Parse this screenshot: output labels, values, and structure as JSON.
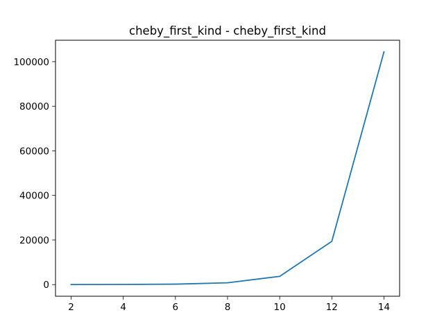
{
  "chart_data": {
    "type": "line",
    "title": "cheby_first_kind - cheby_first_kind",
    "xlabel": "",
    "ylabel": "",
    "x": [
      2,
      4,
      6,
      8,
      10,
      12,
      14
    ],
    "series": [
      {
        "values": [
          10,
          60,
          200,
          800,
          3700,
          19400,
          104400
        ],
        "color": "#1f77b4"
      }
    ],
    "xlim": [
      1.4,
      14.6
    ],
    "ylim": [
      -5220,
      109620
    ],
    "xticks": [
      2,
      4,
      6,
      8,
      10,
      12,
      14
    ],
    "yticks": [
      0,
      20000,
      40000,
      60000,
      80000,
      100000
    ],
    "grid": false,
    "legend": "none"
  }
}
